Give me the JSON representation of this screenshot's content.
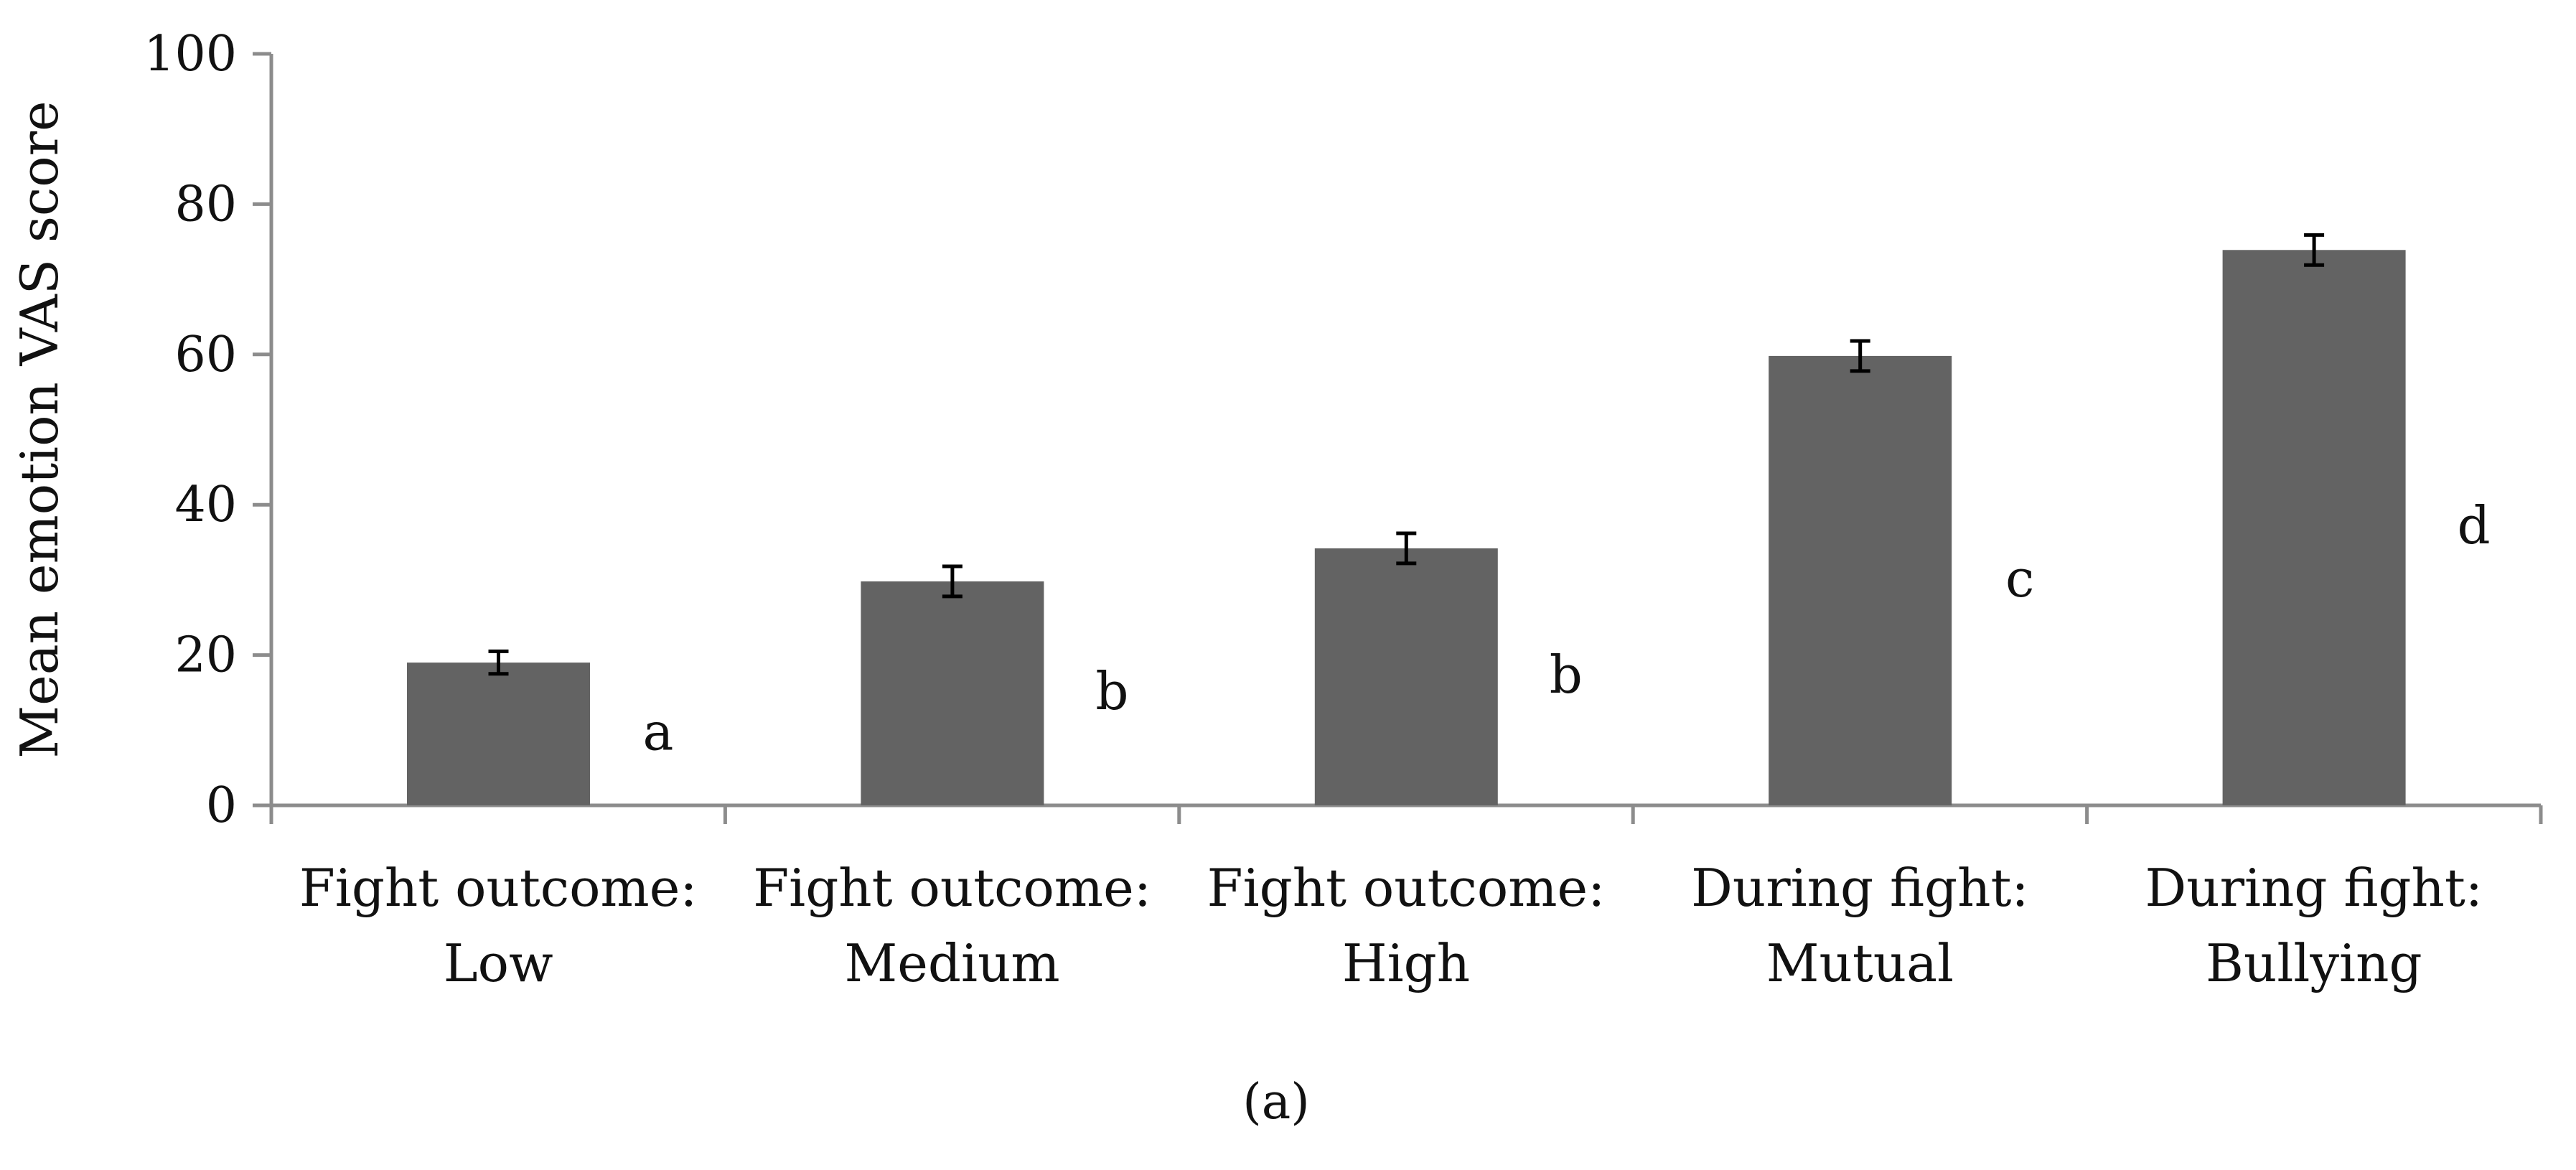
{
  "chart_data": {
    "type": "bar",
    "title": "",
    "xlabel": "",
    "ylabel": "Mean emotion VAS score",
    "ylim": [
      0,
      100
    ],
    "yticks": [
      0,
      20,
      40,
      60,
      80,
      100
    ],
    "grid": false,
    "legend": "none",
    "categories": [
      [
        "Fight outcome:",
        "Low"
      ],
      [
        "Fight outcome:",
        "Medium"
      ],
      [
        "Fight outcome:",
        "High"
      ],
      [
        "During fight:",
        "Mutual"
      ],
      [
        "During fight:",
        "Bullying"
      ]
    ],
    "values": [
      19,
      29.8,
      34.2,
      59.8,
      73.9
    ],
    "error": [
      1.5,
      2.0,
      2.0,
      2.0,
      2.0
    ],
    "significance_letters": [
      "a",
      "b",
      "b",
      "c",
      "d"
    ],
    "bar_color": "#636363",
    "axis_color": "#8c8c8c",
    "panel_label": "(a)"
  }
}
